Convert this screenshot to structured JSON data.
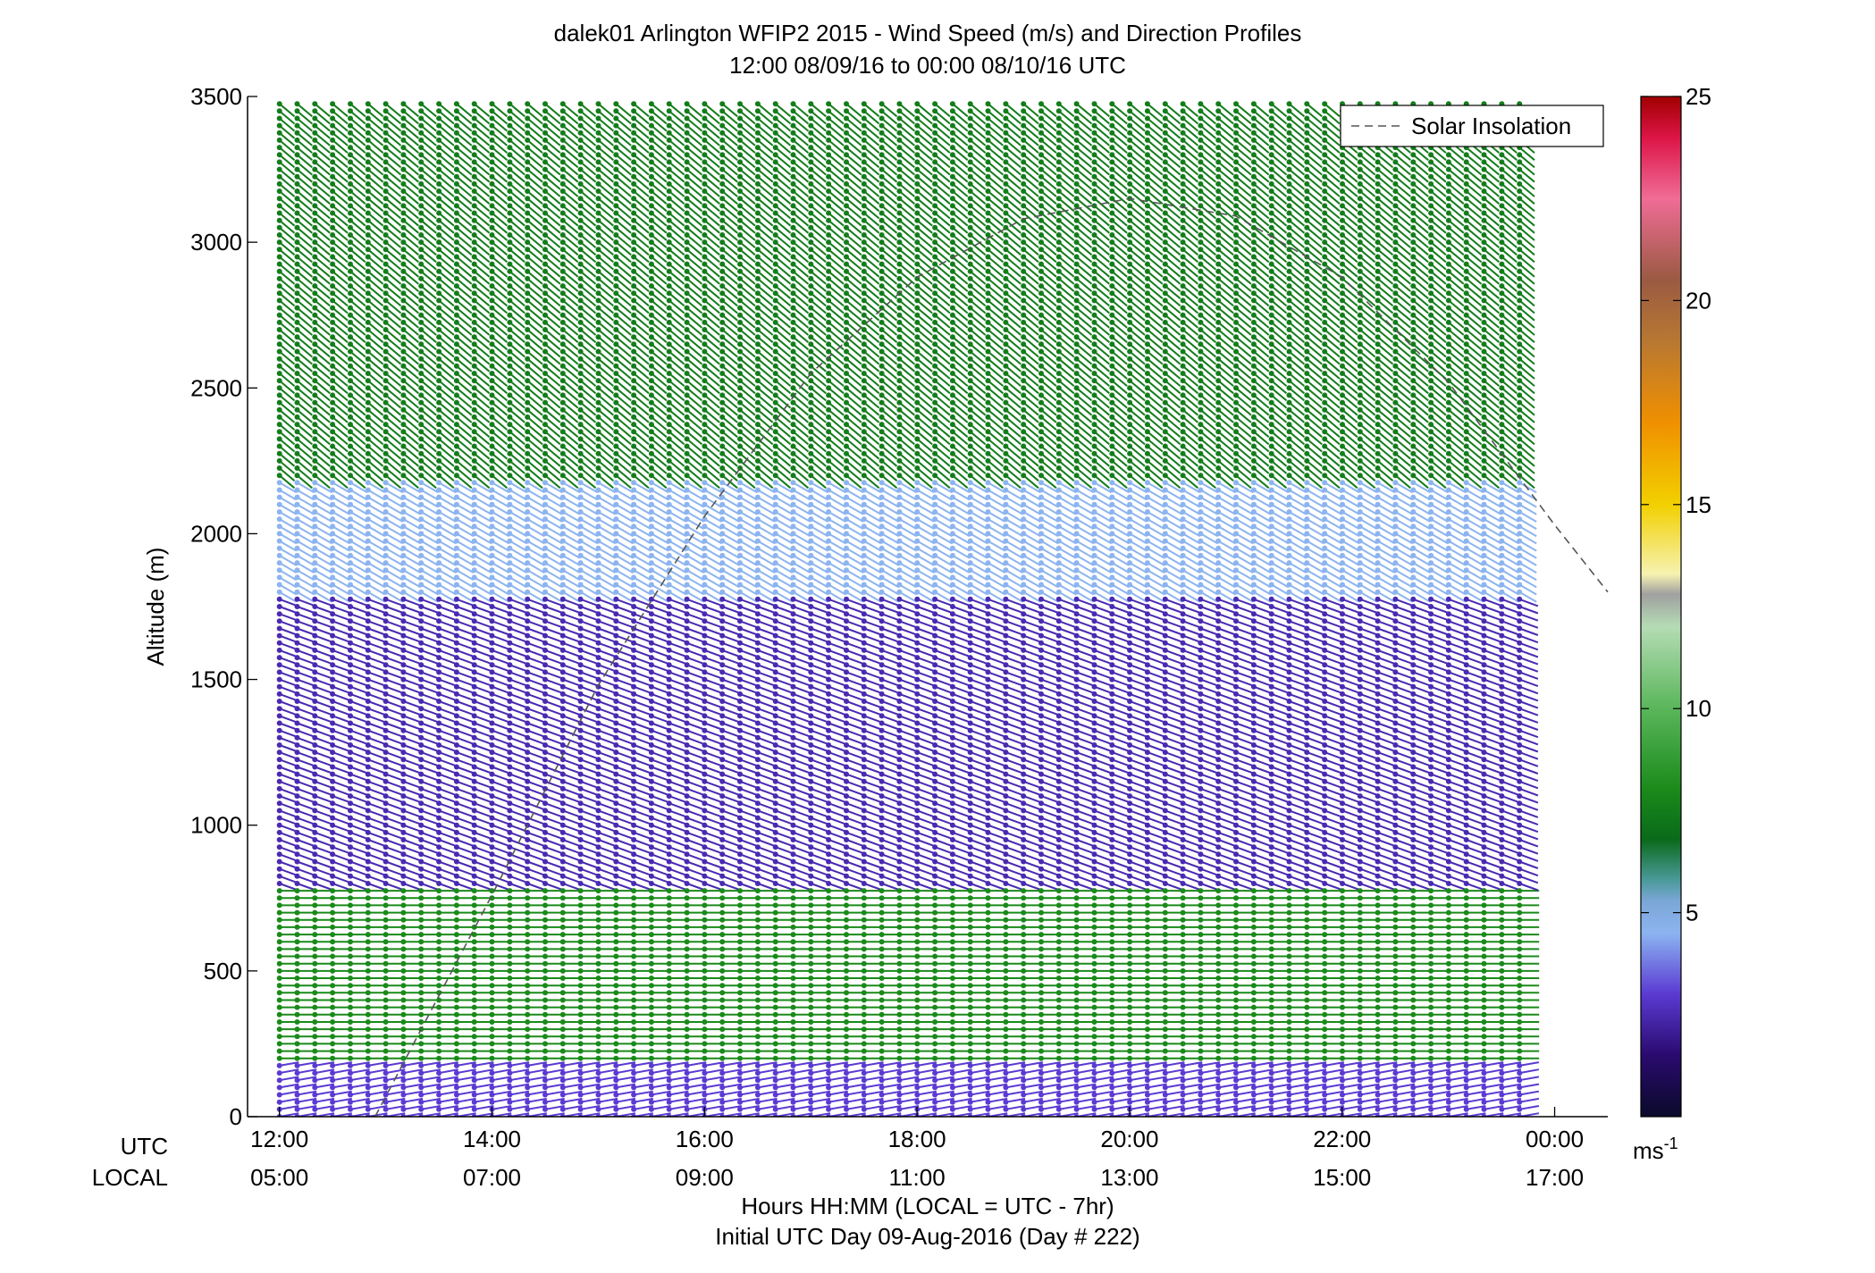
{
  "chart_data": {
    "type": "wind-barb-profile",
    "title": "dalek01 Arlington WFIP2 2015 - Wind Speed (m/s) and Direction Profiles",
    "subtitle": "12:00 08/09/16 to 00:00 08/10/16  UTC",
    "ylabel": "Altitude (m)",
    "xlabel": "Hours HH:MM  (LOCAL = UTC - 7hr)",
    "xlabel2": "Initial UTC Day 09-Aug-2016 (Day # 222)",
    "row_label_utc": "UTC",
    "row_label_local": "LOCAL",
    "ylim": [
      0,
      3500
    ],
    "y_ticks": [
      "0",
      "500",
      "1000",
      "1500",
      "2000",
      "2500",
      "3000",
      "3500"
    ],
    "xlim_hours_utc": [
      11.7,
      24.5
    ],
    "x_tick_hours_utc": [
      12,
      14,
      16,
      18,
      20,
      22,
      24
    ],
    "x_ticks_utc": [
      "12:00",
      "14:00",
      "16:00",
      "18:00",
      "20:00",
      "22:00",
      "00:00"
    ],
    "x_ticks_local": [
      "05:00",
      "07:00",
      "09:00",
      "11:00",
      "13:00",
      "15:00",
      "17:00"
    ],
    "legend": {
      "label": "Solar Insolation",
      "position": "top-right",
      "line_color": "#555555"
    },
    "colorbar": {
      "range": [
        0,
        25
      ],
      "tick_values": [
        5,
        10,
        15,
        20,
        25
      ],
      "ticks": [
        "5",
        "10",
        "15",
        "20",
        "25"
      ],
      "unit_base": "ms",
      "unit_exp": "-1",
      "stops": [
        {
          "v": 0,
          "color": "#0a0a2a"
        },
        {
          "v": 1.5,
          "color": "#2a0a6e"
        },
        {
          "v": 3,
          "color": "#5a3ad2"
        },
        {
          "v": 4.5,
          "color": "#8cb4f0"
        },
        {
          "v": 5.3,
          "color": "#7aa6d6"
        },
        {
          "v": 5.8,
          "color": "#4a9a9a"
        },
        {
          "v": 6.8,
          "color": "#0a6a1a"
        },
        {
          "v": 8,
          "color": "#1a8a1a"
        },
        {
          "v": 10,
          "color": "#5ab65a"
        },
        {
          "v": 12,
          "color": "#b4dcb4"
        },
        {
          "v": 12.8,
          "color": "#a0a0a0"
        },
        {
          "v": 13.3,
          "color": "#f6f2b0"
        },
        {
          "v": 15,
          "color": "#f2d000"
        },
        {
          "v": 17,
          "color": "#f09000"
        },
        {
          "v": 19,
          "color": "#b87832"
        },
        {
          "v": 20.5,
          "color": "#9a5a42"
        },
        {
          "v": 22.5,
          "color": "#f06c96"
        },
        {
          "v": 24,
          "color": "#dc1446"
        },
        {
          "v": 25,
          "color": "#a00000"
        }
      ]
    },
    "solar_insolation_curve": {
      "x_hours_utc": [
        12.9,
        14.0,
        15.0,
        16.0,
        17.0,
        18.0,
        19.0,
        20.0,
        21.0,
        22.0,
        23.0,
        24.0,
        24.5
      ],
      "y_altitude_m": [
        0,
        760,
        1480,
        2060,
        2550,
        2880,
        3080,
        3150,
        3090,
        2880,
        2520,
        2030,
        1800
      ]
    },
    "barb_time_step_hours": 0.1667,
    "barb_altitude_step_m": 25,
    "profile_regimes": [
      {
        "alt_min": 0,
        "alt_max": 200,
        "speed_m_s": 3.0,
        "direction_deg": 260
      },
      {
        "alt_min": 200,
        "alt_max": 800,
        "speed_m_s": 8.0,
        "direction_deg": 270
      },
      {
        "alt_min": 800,
        "alt_max": 1800,
        "speed_m_s": 2.5,
        "direction_deg": 290
      },
      {
        "alt_min": 1800,
        "alt_max": 2200,
        "speed_m_s": 4.5,
        "direction_deg": 300
      },
      {
        "alt_min": 2200,
        "alt_max": 3500,
        "speed_m_s": 7.5,
        "direction_deg": 310
      }
    ]
  }
}
